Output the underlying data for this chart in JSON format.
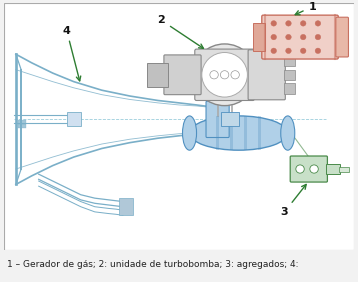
{
  "figure_width": 3.58,
  "figure_height": 2.82,
  "dpi": 100,
  "caption_text": "1 – Gerador de gás; 2: unidade de turbobomba; 3: agregados; 4:",
  "caption_fontsize": 6.5,
  "caption_color": "#222222",
  "label_color": "#111111",
  "arrow_color": "#2e7d32",
  "label_fontsize": 8,
  "nozzle_color": "#7aafc8",
  "nozzle_lw": 0.9,
  "engine_red": "#c87060",
  "engine_red_light": "#f0d0c8",
  "engine_gray": "#999999",
  "engine_gray_light": "#dddddd",
  "engine_blue": "#5090c0",
  "engine_blue_light": "#b0d0e8",
  "engine_green": "#4a8a4a",
  "engine_green_light": "#c8e0c8",
  "centerline_color": "#90c8d8",
  "bg_color": "#ffffff",
  "outer_bg": "#f2f2f2"
}
